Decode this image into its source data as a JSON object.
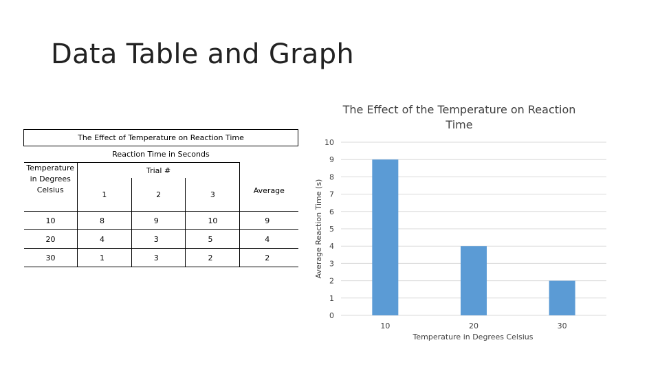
{
  "slide": {
    "title": "Data Table and Graph"
  },
  "table": {
    "title": "The Effect of Temperature on Reaction Time",
    "subtitle": "Reaction Time in Seconds",
    "row_header": "Temperature in Degrees Celsius",
    "trial_label": "Trial #",
    "trial_numbers": [
      "1",
      "2",
      "3"
    ],
    "average_label": "Average",
    "rows": [
      {
        "temp": "10",
        "t1": "8",
        "t2": "9",
        "t3": "10",
        "avg": "9"
      },
      {
        "temp": "20",
        "t1": "4",
        "t2": "3",
        "t3": "5",
        "avg": "4"
      },
      {
        "temp": "30",
        "t1": "1",
        "t2": "3",
        "t3": "2",
        "avg": "2"
      }
    ]
  },
  "chart_data": {
    "type": "bar",
    "title": "The Effect of the Temperature on Reaction Time",
    "xlabel": "Temperature in Degrees Celsius",
    "ylabel": "Average Reaction Time (s)",
    "categories": [
      "10",
      "20",
      "30"
    ],
    "values": [
      9,
      4,
      2
    ],
    "ylim": [
      0,
      10
    ],
    "yticks": [
      "0",
      "1",
      "2",
      "3",
      "4",
      "5",
      "6",
      "7",
      "8",
      "9",
      "10"
    ],
    "grid": true,
    "bar_color": "#5B9BD5",
    "grid_color": "#D9D9D9"
  }
}
